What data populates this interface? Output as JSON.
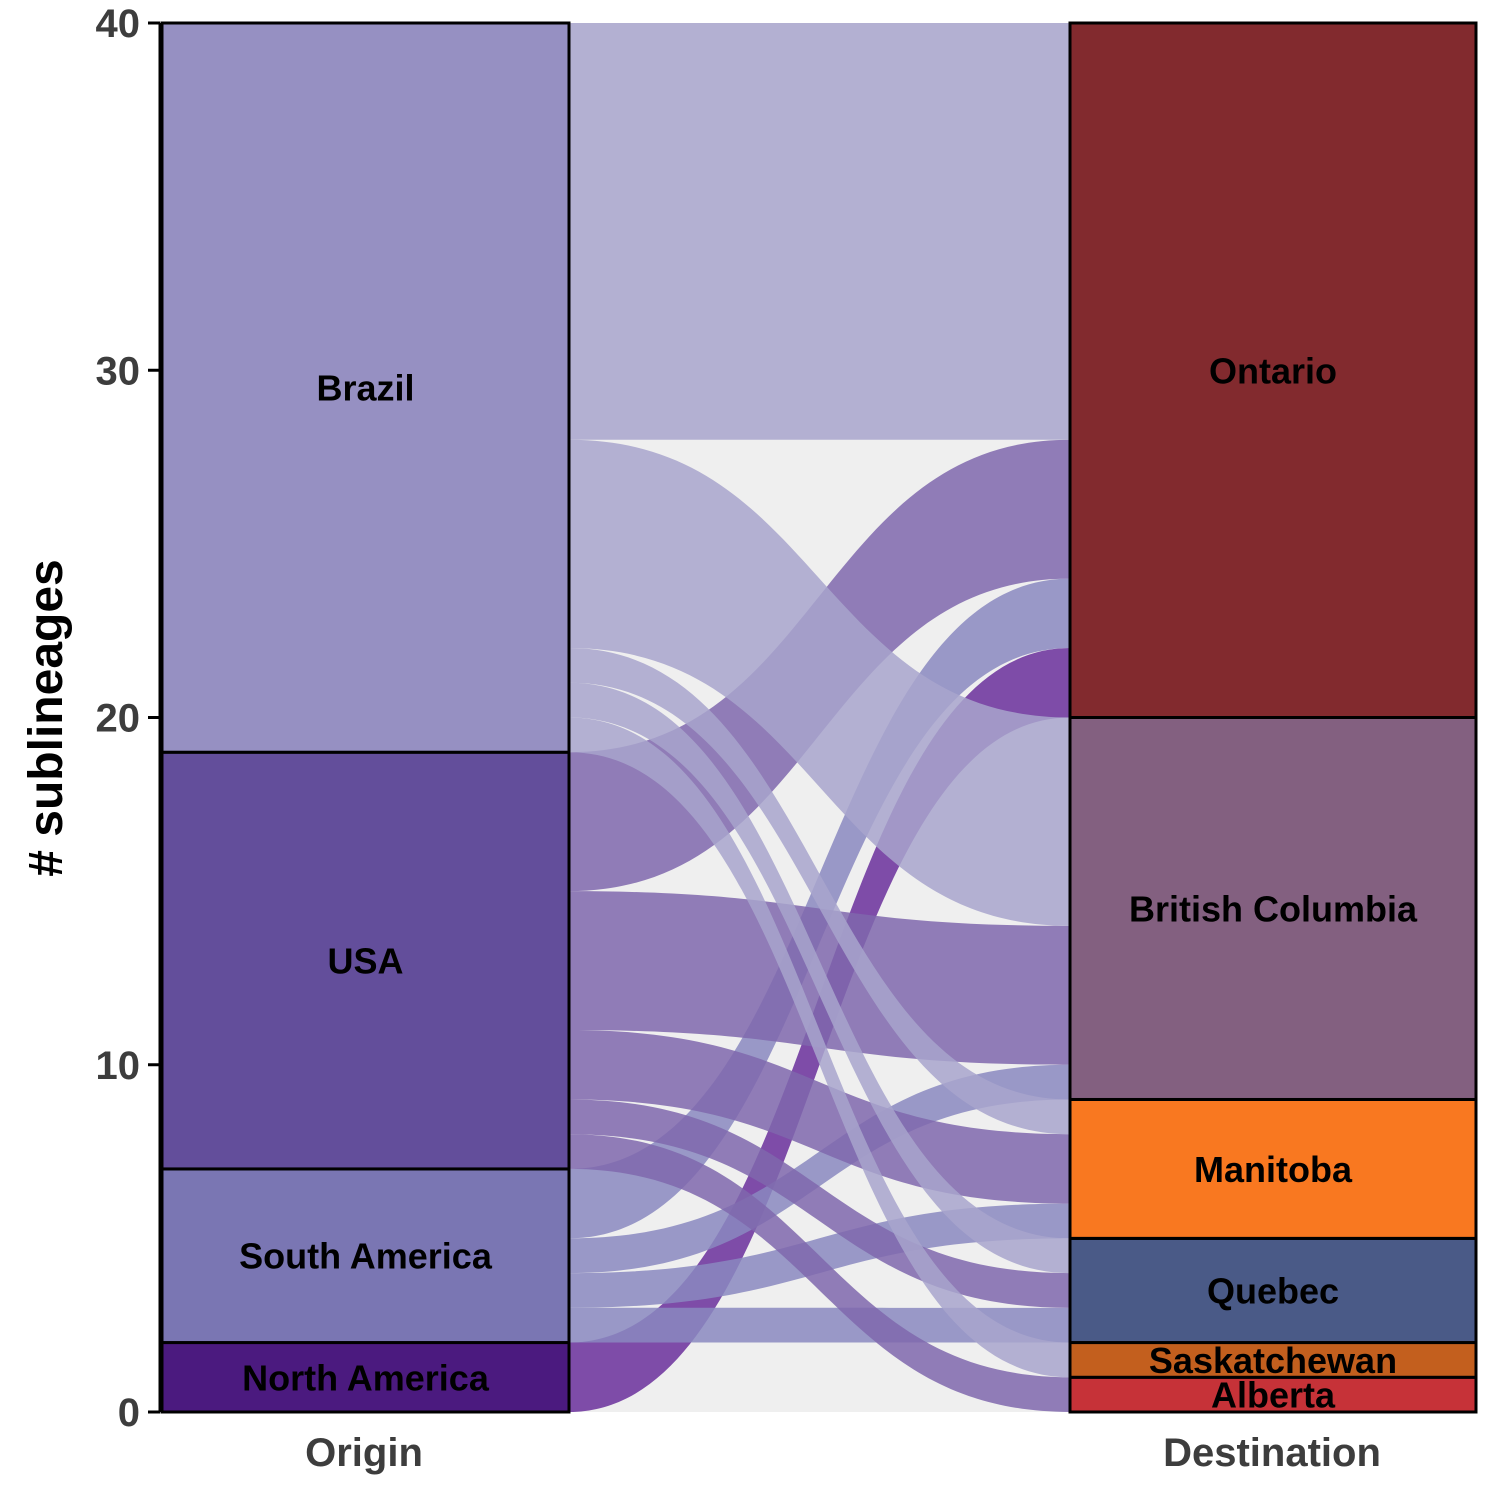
{
  "chart_data": {
    "type": "alluvial",
    "ylabel": "# sublineages",
    "xlabel": "",
    "ylim": [
      0,
      40
    ],
    "yticks": [
      0,
      10,
      20,
      30,
      40
    ],
    "grid": false,
    "axes": [
      "Origin",
      "Destination"
    ],
    "origin_strata": [
      {
        "name": "North America",
        "value": 2,
        "color": "#4b1a7f"
      },
      {
        "name": "South America",
        "value": 5,
        "color": "#7a76b3"
      },
      {
        "name": "USA",
        "value": 12,
        "color": "#634e9b"
      },
      {
        "name": "Brazil",
        "value": 21,
        "color": "#9690c2"
      }
    ],
    "destination_strata": [
      {
        "name": "Alberta",
        "value": 1,
        "color": "#c63238"
      },
      {
        "name": "Saskatchewan",
        "value": 1,
        "color": "#c35f1e"
      },
      {
        "name": "Quebec",
        "value": 3,
        "color": "#4a5a87"
      },
      {
        "name": "Manitoba",
        "value": 4,
        "color": "#f97820"
      },
      {
        "name": "British Columbia",
        "value": 11,
        "color": "#836080"
      },
      {
        "name": "Ontario",
        "value": 20,
        "color": "#822a2e"
      }
    ],
    "flows": [
      {
        "origin": "North America",
        "destination": "Ontario",
        "value": 2
      },
      {
        "origin": "South America",
        "destination": "Alberta",
        "value": 0.001
      },
      {
        "origin": "South America",
        "destination": "Quebec",
        "value": 1
      },
      {
        "origin": "South America",
        "destination": "Manitoba",
        "value": 1
      },
      {
        "origin": "South America",
        "destination": "British Columbia",
        "value": 1
      },
      {
        "origin": "South America",
        "destination": "Ontario",
        "value": 2
      },
      {
        "origin": "USA",
        "destination": "Alberta",
        "value": 1
      },
      {
        "origin": "USA",
        "destination": "Quebec",
        "value": 1
      },
      {
        "origin": "USA",
        "destination": "Manitoba",
        "value": 2
      },
      {
        "origin": "USA",
        "destination": "British Columbia",
        "value": 4
      },
      {
        "origin": "USA",
        "destination": "Ontario",
        "value": 4
      },
      {
        "origin": "Brazil",
        "destination": "Saskatchewan",
        "value": 1
      },
      {
        "origin": "Brazil",
        "destination": "Quebec",
        "value": 1
      },
      {
        "origin": "Brazil",
        "destination": "Manitoba",
        "value": 1
      },
      {
        "origin": "Brazil",
        "destination": "British Columbia",
        "value": 6
      },
      {
        "origin": "Brazil",
        "destination": "Ontario",
        "value": 12
      }
    ],
    "flow_colors": {
      "North America": "#6a2f9b",
      "South America": "#8a88c0",
      "USA": "#7f67ad",
      "Brazil": "#a8a4cc"
    },
    "background_color": "#efefef"
  }
}
